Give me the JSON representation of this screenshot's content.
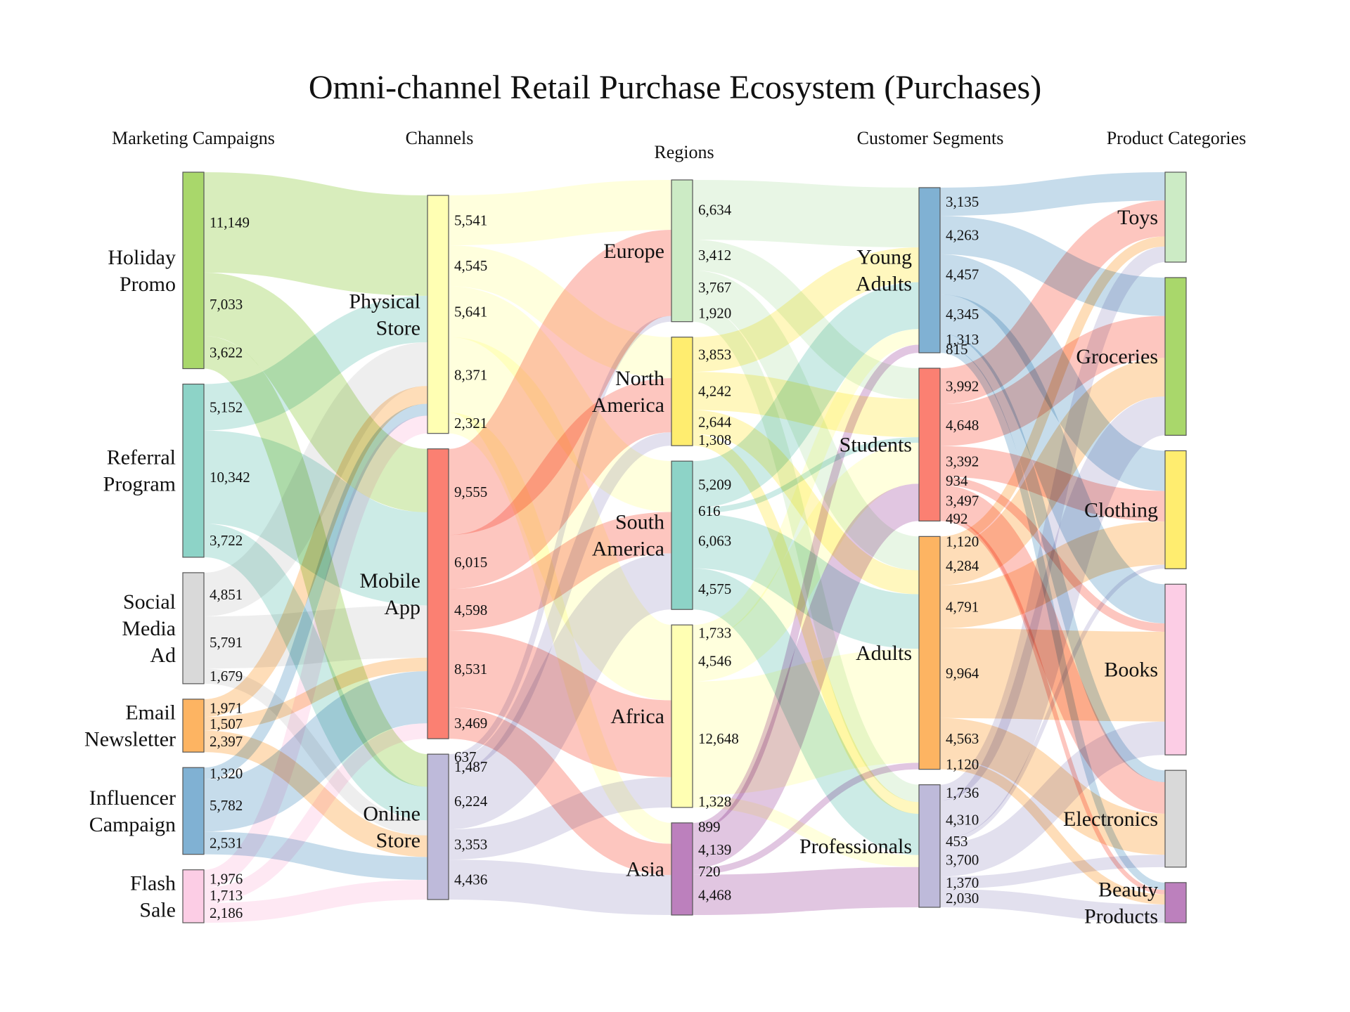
{
  "chart_data": {
    "type": "sankey",
    "title": "Omni-channel Retail Purchase Ecosystem (Purchases)",
    "columns": [
      "Marketing Campaigns",
      "Channels",
      "Regions",
      "Customer Segments",
      "Product Categories"
    ],
    "nodes": [
      {
        "id": "hp",
        "label": "Holiday Promo",
        "column": 0,
        "color": "#a9d76b"
      },
      {
        "id": "rp",
        "label": "Referral Program",
        "column": 0,
        "color": "#8dd3c7"
      },
      {
        "id": "sm",
        "label": "Social Media Ad",
        "column": 0,
        "color": "#d9d9d9"
      },
      {
        "id": "en",
        "label": "Email Newsletter",
        "column": 0,
        "color": "#fdb462"
      },
      {
        "id": "ic",
        "label": "Influencer Campaign",
        "column": 0,
        "color": "#80b1d3"
      },
      {
        "id": "fs",
        "label": "Flash Sale",
        "column": 0,
        "color": "#fccde5"
      },
      {
        "id": "ps",
        "label": "Physical Store",
        "column": 1,
        "color": "#ffffb3"
      },
      {
        "id": "ma",
        "label": "Mobile App",
        "column": 1,
        "color": "#fb8072"
      },
      {
        "id": "os",
        "label": "Online Store",
        "column": 1,
        "color": "#bebada"
      },
      {
        "id": "eu",
        "label": "Europe",
        "column": 2,
        "color": "#ccebc5"
      },
      {
        "id": "na",
        "label": "North America",
        "column": 2,
        "color": "#ffed6f"
      },
      {
        "id": "sa",
        "label": "South America",
        "column": 2,
        "color": "#8dd3c7"
      },
      {
        "id": "af",
        "label": "Africa",
        "column": 2,
        "color": "#ffffb3"
      },
      {
        "id": "as",
        "label": "Asia",
        "column": 2,
        "color": "#bc80bd"
      },
      {
        "id": "ya",
        "label": "Young Adults",
        "column": 3,
        "color": "#80b1d3"
      },
      {
        "id": "st",
        "label": "Students",
        "column": 3,
        "color": "#fb8072"
      },
      {
        "id": "ad",
        "label": "Adults",
        "column": 3,
        "color": "#fdb462"
      },
      {
        "id": "pr",
        "label": "Professionals",
        "column": 3,
        "color": "#bebada"
      },
      {
        "id": "toy",
        "label": "Toys",
        "column": 4,
        "color": "#ccebc5"
      },
      {
        "id": "gro",
        "label": "Groceries",
        "column": 4,
        "color": "#a9d76b"
      },
      {
        "id": "clo",
        "label": "Clothing",
        "column": 4,
        "color": "#ffed6f"
      },
      {
        "id": "boo",
        "label": "Books",
        "column": 4,
        "color": "#fccde5"
      },
      {
        "id": "ele",
        "label": "Electronics",
        "column": 4,
        "color": "#d9d9d9"
      },
      {
        "id": "bea",
        "label": "Beauty Products",
        "column": 4,
        "color": "#bc80bd"
      }
    ],
    "links": [
      {
        "source": "hp",
        "target": "ps",
        "value": 11149,
        "label": "11,149"
      },
      {
        "source": "hp",
        "target": "ma",
        "value": 7033,
        "label": "7,033"
      },
      {
        "source": "hp",
        "target": "os",
        "value": 3622,
        "label": "3,622"
      },
      {
        "source": "rp",
        "target": "ps",
        "value": 5152,
        "label": "5,152"
      },
      {
        "source": "rp",
        "target": "ma",
        "value": 10342,
        "label": "10,342"
      },
      {
        "source": "rp",
        "target": "os",
        "value": 3722,
        "label": "3,722"
      },
      {
        "source": "sm",
        "target": "ps",
        "value": 4851,
        "label": "4,851"
      },
      {
        "source": "sm",
        "target": "ma",
        "value": 5791,
        "label": "5,791"
      },
      {
        "source": "sm",
        "target": "os",
        "value": 1679,
        "label": "1,679"
      },
      {
        "source": "en",
        "target": "ps",
        "value": 1971,
        "label": "1,971"
      },
      {
        "source": "en",
        "target": "ma",
        "value": 1507,
        "label": "1,507"
      },
      {
        "source": "en",
        "target": "os",
        "value": 2397,
        "label": "2,397"
      },
      {
        "source": "ic",
        "target": "ps",
        "value": 1320,
        "label": "1,320"
      },
      {
        "source": "ic",
        "target": "ma",
        "value": 5782,
        "label": "5,782"
      },
      {
        "source": "ic",
        "target": "os",
        "value": 2531,
        "label": "2,531"
      },
      {
        "source": "fs",
        "target": "ps",
        "value": 1976,
        "label": "1,976"
      },
      {
        "source": "fs",
        "target": "ma",
        "value": 1713,
        "label": "1,713"
      },
      {
        "source": "fs",
        "target": "os",
        "value": 2186,
        "label": "2,186"
      },
      {
        "source": "ps",
        "target": "eu",
        "value": 5541,
        "label": "5,541"
      },
      {
        "source": "ps",
        "target": "na",
        "value": 4545,
        "label": "4,545"
      },
      {
        "source": "ps",
        "target": "sa",
        "value": 5641,
        "label": "5,641"
      },
      {
        "source": "ps",
        "target": "af",
        "value": 8371,
        "label": "8,371"
      },
      {
        "source": "ps",
        "target": "as",
        "value": 2321,
        "label": "2,321"
      },
      {
        "source": "ma",
        "target": "eu",
        "value": 9555,
        "label": "9,555"
      },
      {
        "source": "ma",
        "target": "na",
        "value": 6015,
        "label": "6,015"
      },
      {
        "source": "ma",
        "target": "sa",
        "value": 4598,
        "label": "4,598"
      },
      {
        "source": "ma",
        "target": "af",
        "value": 8531,
        "label": "8,531"
      },
      {
        "source": "ma",
        "target": "as",
        "value": 3469,
        "label": "3,469"
      },
      {
        "source": "os",
        "target": "eu",
        "value": 637,
        "label": "637"
      },
      {
        "source": "os",
        "target": "na",
        "value": 1487,
        "label": "1,487"
      },
      {
        "source": "os",
        "target": "sa",
        "value": 6224,
        "label": "6,224"
      },
      {
        "source": "os",
        "target": "af",
        "value": 3353,
        "label": "3,353"
      },
      {
        "source": "os",
        "target": "as",
        "value": 4436,
        "label": "4,436"
      },
      {
        "source": "eu",
        "target": "ya",
        "value": 6634,
        "label": "6,634"
      },
      {
        "source": "eu",
        "target": "st",
        "value": 3412,
        "label": "3,412"
      },
      {
        "source": "eu",
        "target": "ad",
        "value": 3767,
        "label": "3,767"
      },
      {
        "source": "eu",
        "target": "pr",
        "value": 1920,
        "label": "1,920"
      },
      {
        "source": "na",
        "target": "ya",
        "value": 3853,
        "label": "3,853"
      },
      {
        "source": "na",
        "target": "st",
        "value": 4242,
        "label": "4,242"
      },
      {
        "source": "na",
        "target": "ad",
        "value": 2644,
        "label": "2,644"
      },
      {
        "source": "na",
        "target": "pr",
        "value": 1308,
        "label": "1,308"
      },
      {
        "source": "sa",
        "target": "ya",
        "value": 5209,
        "label": "5,209"
      },
      {
        "source": "sa",
        "target": "st",
        "value": 616,
        "label": "616"
      },
      {
        "source": "sa",
        "target": "ad",
        "value": 6063,
        "label": "6,063"
      },
      {
        "source": "sa",
        "target": "pr",
        "value": 4575,
        "label": "4,575"
      },
      {
        "source": "af",
        "target": "ya",
        "value": 1733,
        "label": "1,733"
      },
      {
        "source": "af",
        "target": "st",
        "value": 4546,
        "label": "4,546"
      },
      {
        "source": "af",
        "target": "ad",
        "value": 12648,
        "label": "12,648"
      },
      {
        "source": "af",
        "target": "pr",
        "value": 1328,
        "label": "1,328"
      },
      {
        "source": "as",
        "target": "ya",
        "value": 899,
        "label": "899"
      },
      {
        "source": "as",
        "target": "st",
        "value": 4139,
        "label": "4,139"
      },
      {
        "source": "as",
        "target": "ad",
        "value": 720,
        "label": "720"
      },
      {
        "source": "as",
        "target": "pr",
        "value": 4468,
        "label": "4,468"
      },
      {
        "source": "ya",
        "target": "toy",
        "value": 3135,
        "label": "3,135"
      },
      {
        "source": "ya",
        "target": "gro",
        "value": 4263,
        "label": "4,263"
      },
      {
        "source": "ya",
        "target": "clo",
        "value": 4457,
        "label": "4,457"
      },
      {
        "source": "ya",
        "target": "boo",
        "value": 4345,
        "label": "4,345"
      },
      {
        "source": "ya",
        "target": "ele",
        "value": 1313,
        "label": "1,313"
      },
      {
        "source": "ya",
        "target": "bea",
        "value": 815,
        "label": "815"
      },
      {
        "source": "st",
        "target": "toy",
        "value": 3992,
        "label": "3,992"
      },
      {
        "source": "st",
        "target": "gro",
        "value": 4648,
        "label": "4,648"
      },
      {
        "source": "st",
        "target": "clo",
        "value": 3392,
        "label": "3,392"
      },
      {
        "source": "st",
        "target": "boo",
        "value": 934,
        "label": "934"
      },
      {
        "source": "st",
        "target": "ele",
        "value": 3497,
        "label": "3,497"
      },
      {
        "source": "st",
        "target": "bea",
        "value": 492,
        "label": "492"
      },
      {
        "source": "ad",
        "target": "toy",
        "value": 1120,
        "label": "1,120"
      },
      {
        "source": "ad",
        "target": "gro",
        "value": 4284,
        "label": "4,284"
      },
      {
        "source": "ad",
        "target": "clo",
        "value": 4791,
        "label": "4,791"
      },
      {
        "source": "ad",
        "target": "boo",
        "value": 9964,
        "label": "9,964"
      },
      {
        "source": "ad",
        "target": "ele",
        "value": 4563,
        "label": "4,563"
      },
      {
        "source": "ad",
        "target": "bea",
        "value": 1120,
        "label": "1,120"
      },
      {
        "source": "pr",
        "target": "toy",
        "value": 1736,
        "label": "1,736"
      },
      {
        "source": "pr",
        "target": "gro",
        "value": 4310,
        "label": "4,310"
      },
      {
        "source": "pr",
        "target": "clo",
        "value": 453,
        "label": "453"
      },
      {
        "source": "pr",
        "target": "boo",
        "value": 3700,
        "label": "3,700"
      },
      {
        "source": "pr",
        "target": "ele",
        "value": 1370,
        "label": "1,370"
      },
      {
        "source": "pr",
        "target": "bea",
        "value": 2030,
        "label": "2,030"
      }
    ]
  }
}
